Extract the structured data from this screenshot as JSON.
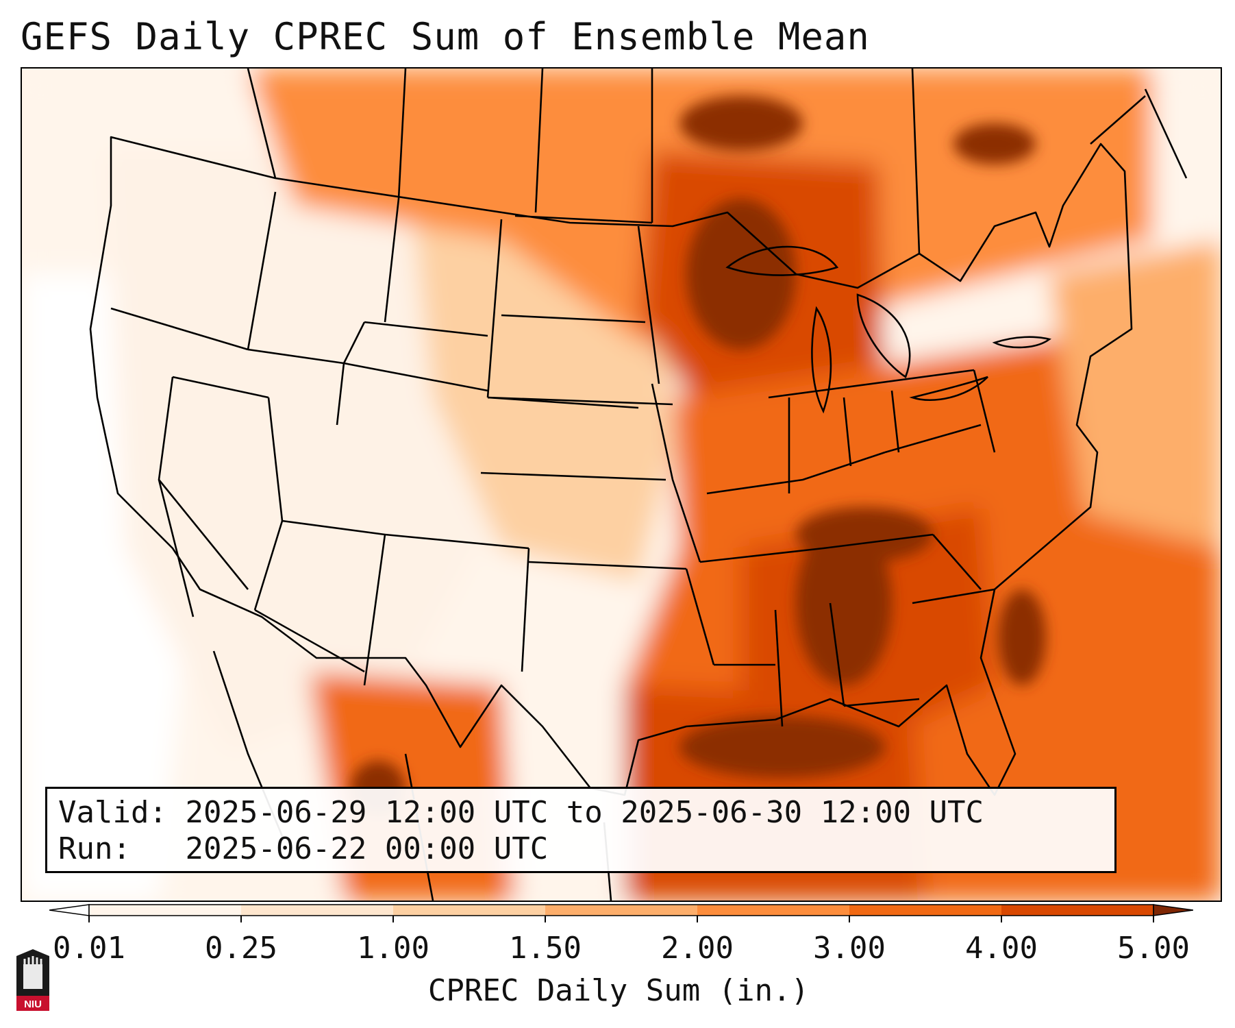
{
  "title": "GEFS Daily CPREC Sum of Ensemble Mean",
  "info": {
    "valid_label": "Valid:",
    "valid_value": "2025-06-29 12:00 UTC to 2025-06-30 12:00 UTC",
    "run_label": "Run:",
    "run_value": "2025-06-22 00:00 UTC"
  },
  "colorbar": {
    "label": "CPREC Daily Sum (in.)",
    "ticks": [
      "0.01",
      "0.25",
      "1.00",
      "1.50",
      "2.00",
      "3.00",
      "4.00",
      "5.00"
    ],
    "colors": [
      "#fff5eb",
      "#fee6ce",
      "#fdd0a2",
      "#fdae6b",
      "#fd8d3c",
      "#f16913",
      "#d94801",
      "#8c2d04"
    ],
    "under_color": "#ffffff",
    "over_color": "#7f2704"
  },
  "map": {
    "projection": "Lambert Conformal Conic",
    "region": "Contiguous United States",
    "variable": "Convective precipitation (in.)"
  },
  "logo": {
    "text": "NIU"
  }
}
